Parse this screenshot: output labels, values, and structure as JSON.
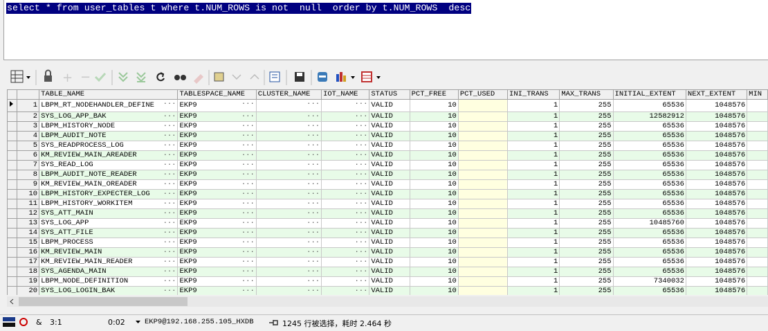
{
  "editor": {
    "sql": "select * from user_tables t where t.NUM_ROWS is not  null  order by t.NUM_ROWS  desc"
  },
  "grid": {
    "columns": [
      "TABLE_NAME",
      "TABLESPACE_NAME",
      "CLUSTER_NAME",
      "IOT_NAME",
      "STATUS",
      "PCT_FREE",
      "PCT_USED",
      "INI_TRANS",
      "MAX_TRANS",
      "INITIAL_EXTENT",
      "NEXT_EXTENT",
      "MIN"
    ],
    "rows": [
      [
        1,
        "LBPM_RT_NODEHANDLER_DEFINE",
        "EKP9",
        "VALID",
        10,
        1,
        255,
        65536,
        1048576
      ],
      [
        2,
        "SYS_LOG_APP_BAK",
        "EKP9",
        "VALID",
        10,
        1,
        255,
        12582912,
        1048576
      ],
      [
        3,
        "LBPM_HISTORY_NODE",
        "EKP9",
        "VALID",
        10,
        1,
        255,
        65536,
        1048576
      ],
      [
        4,
        "LBPM_AUDIT_NOTE",
        "EKP9",
        "VALID",
        10,
        1,
        255,
        65536,
        1048576
      ],
      [
        5,
        "SYS_READPROCESS_LOG",
        "EKP9",
        "VALID",
        10,
        1,
        255,
        65536,
        1048576
      ],
      [
        6,
        "KM_REVIEW_MAIN_AREADER",
        "EKP9",
        "VALID",
        10,
        1,
        255,
        65536,
        1048576
      ],
      [
        7,
        "SYS_READ_LOG",
        "EKP9",
        "VALID",
        10,
        1,
        255,
        65536,
        1048576
      ],
      [
        8,
        "LBPM_AUDIT_NOTE_READER",
        "EKP9",
        "VALID",
        10,
        1,
        255,
        65536,
        1048576
      ],
      [
        9,
        "KM_REVIEW_MAIN_OREADER",
        "EKP9",
        "VALID",
        10,
        1,
        255,
        65536,
        1048576
      ],
      [
        10,
        "LBPM_HISTORY_EXPECTER_LOG",
        "EKP9",
        "VALID",
        10,
        1,
        255,
        65536,
        1048576
      ],
      [
        11,
        "LBPM_HISTORY_WORKITEM",
        "EKP9",
        "VALID",
        10,
        1,
        255,
        65536,
        1048576
      ],
      [
        12,
        "SYS_ATT_MAIN",
        "EKP9",
        "VALID",
        10,
        1,
        255,
        65536,
        1048576
      ],
      [
        13,
        "SYS_LOG_APP",
        "EKP9",
        "VALID",
        10,
        1,
        255,
        10485760,
        1048576
      ],
      [
        14,
        "SYS_ATT_FILE",
        "EKP9",
        "VALID",
        10,
        1,
        255,
        65536,
        1048576
      ],
      [
        15,
        "LBPM_PROCESS",
        "EKP9",
        "VALID",
        10,
        1,
        255,
        65536,
        1048576
      ],
      [
        16,
        "KM_REVIEW_MAIN",
        "EKP9",
        "VALID",
        10,
        1,
        255,
        65536,
        1048576
      ],
      [
        17,
        "KM_REVIEW_MAIN_READER",
        "EKP9",
        "VALID",
        10,
        1,
        255,
        65536,
        1048576
      ],
      [
        18,
        "SYS_AGENDA_MAIN",
        "EKP9",
        "VALID",
        10,
        1,
        255,
        65536,
        1048576
      ],
      [
        19,
        "LBPM_NODE_DEFINITION",
        "EKP9",
        "VALID",
        10,
        1,
        255,
        7340032,
        1048576
      ],
      [
        20,
        "SYS_LOG_LOGIN_BAK",
        "EKP9",
        "VALID",
        10,
        1,
        255,
        65536,
        1048576
      ]
    ]
  },
  "status_bar": {
    "shortcut": "&",
    "cursor": "3:1",
    "elapsed": "0:02",
    "connection": "EKP9@192.168.255.105_HXDB",
    "message": "1245 行被选择，耗时 2.464 秒"
  }
}
